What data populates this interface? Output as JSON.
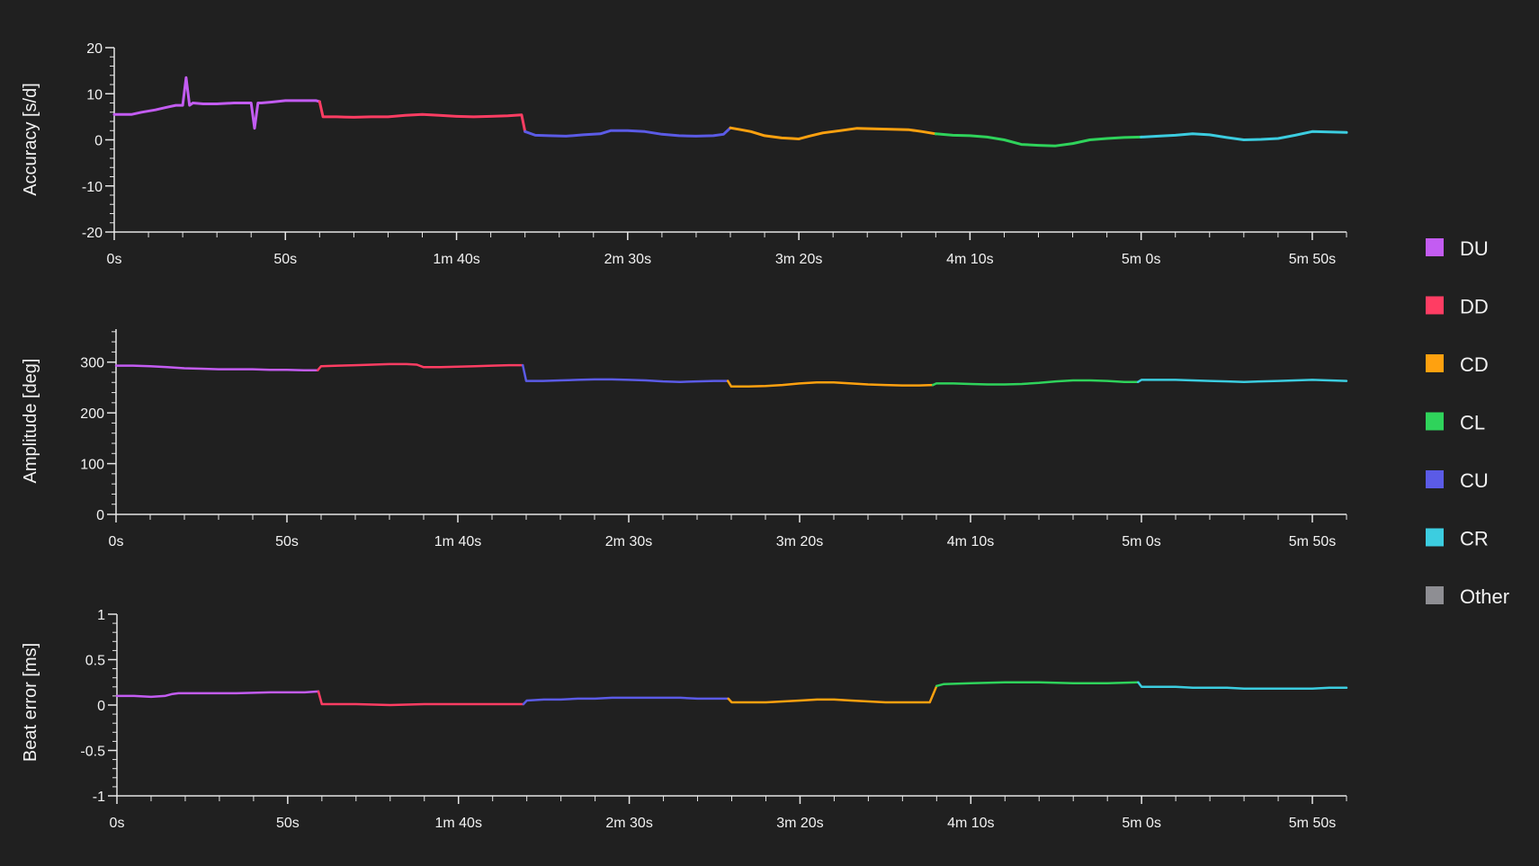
{
  "legend": {
    "placement": "right",
    "items": [
      {
        "label": "DU",
        "color": "#c35cf2"
      },
      {
        "label": "DD",
        "color": "#ff3d63"
      },
      {
        "label": "CD",
        "color": "#ffa10f"
      },
      {
        "label": "CL",
        "color": "#2fd35b"
      },
      {
        "label": "CU",
        "color": "#5b5be6"
      },
      {
        "label": "CR",
        "color": "#3ccde0"
      },
      {
        "label": "Other",
        "color": "#8e8e93"
      }
    ]
  },
  "chart_data": [
    {
      "type": "line",
      "ylabel": "Accuracy [s/d]",
      "ylim": [
        -20,
        20
      ],
      "yticks": [
        20,
        10,
        0,
        -10,
        -20
      ],
      "ytick_labels": [
        "20",
        "10",
        "0",
        "-10",
        "-20"
      ],
      "xlim": [
        0,
        360
      ],
      "xticks": [
        0,
        50,
        100,
        150,
        200,
        250,
        300,
        350
      ],
      "xtick_labels": [
        "0s",
        "50s",
        "1m 40s",
        "2m 30s",
        "3m 20s",
        "4m 10s",
        "5m 0s",
        "5m 50s"
      ],
      "grid": false,
      "series": [
        {
          "name": "DU",
          "color": "#c35cf2",
          "x": [
            0,
            5,
            8,
            12,
            15,
            18,
            20,
            21,
            22,
            23,
            26,
            30,
            35,
            40,
            41,
            42,
            43,
            46,
            50,
            53,
            56,
            59,
            60
          ],
          "y": [
            5.5,
            5.5,
            6,
            6.5,
            7,
            7.5,
            7.5,
            13.5,
            7.5,
            8,
            7.8,
            7.8,
            8,
            8,
            2.5,
            8,
            8,
            8.2,
            8.5,
            8.5,
            8.5,
            8.5,
            8.3
          ]
        },
        {
          "name": "DD",
          "color": "#ff3d63",
          "x": [
            60,
            61,
            65,
            70,
            75,
            80,
            85,
            90,
            95,
            100,
            105,
            110,
            115,
            119,
            120
          ],
          "y": [
            8.3,
            5,
            5,
            4.9,
            5,
            5,
            5.3,
            5.5,
            5.3,
            5.1,
            5,
            5.1,
            5.2,
            5.4,
            1.8
          ]
        },
        {
          "name": "CU",
          "color": "#5b5be6",
          "x": [
            120,
            123,
            127,
            132,
            137,
            142,
            145,
            150,
            155,
            160,
            165,
            170,
            175,
            178,
            180
          ],
          "y": [
            1.8,
            1,
            0.9,
            0.8,
            1.1,
            1.3,
            2,
            2,
            1.8,
            1.2,
            0.9,
            0.8,
            0.9,
            1.2,
            2.6
          ]
        },
        {
          "name": "CD",
          "color": "#ffa10f",
          "x": [
            180,
            183,
            186,
            190,
            195,
            198,
            200,
            203,
            207,
            212,
            217,
            222,
            227,
            232,
            236,
            240
          ],
          "y": [
            2.6,
            2.2,
            1.8,
            0.9,
            0.4,
            0.3,
            0.2,
            0.8,
            1.5,
            2,
            2.5,
            2.4,
            2.3,
            2.2,
            1.8,
            1.3
          ]
        },
        {
          "name": "CL",
          "color": "#2fd35b",
          "x": [
            240,
            245,
            250,
            255,
            260,
            265,
            270,
            275,
            280,
            285,
            290,
            295,
            300
          ],
          "y": [
            1.3,
            1,
            0.9,
            0.6,
            0,
            -1,
            -1.2,
            -1.3,
            -0.8,
            0,
            0.3,
            0.5,
            0.6
          ]
        },
        {
          "name": "CR",
          "color": "#3ccde0",
          "x": [
            300,
            305,
            310,
            315,
            320,
            325,
            330,
            335,
            340,
            345,
            350,
            355,
            360
          ],
          "y": [
            0.6,
            0.8,
            1,
            1.3,
            1.1,
            0.5,
            0,
            0.1,
            0.3,
            1,
            1.8,
            1.7,
            1.6
          ]
        }
      ]
    },
    {
      "type": "line",
      "ylabel": "Amplitude [deg]",
      "ylim": [
        0,
        365
      ],
      "yticks": [
        300,
        200,
        100,
        0
      ],
      "ytick_labels": [
        "300",
        "200",
        "100",
        "0"
      ],
      "xlim": [
        0,
        360
      ],
      "xticks": [
        0,
        50,
        100,
        150,
        200,
        250,
        300,
        350
      ],
      "xtick_labels": [
        "0s",
        "50s",
        "1m 40s",
        "2m 30s",
        "3m 20s",
        "4m 10s",
        "5m 0s",
        "5m 50s"
      ],
      "grid": false,
      "series": [
        {
          "name": "DU",
          "color": "#c35cf2",
          "x": [
            0,
            5,
            10,
            15,
            20,
            25,
            30,
            35,
            40,
            45,
            50,
            55,
            59
          ],
          "y": [
            293,
            293,
            292,
            290,
            288,
            287,
            286,
            286,
            286,
            285,
            285,
            284,
            284
          ]
        },
        {
          "name": "DD",
          "color": "#ff3d63",
          "x": [
            59,
            60,
            65,
            70,
            75,
            80,
            85,
            88,
            90,
            95,
            100,
            105,
            110,
            115,
            119
          ],
          "y": [
            284,
            292,
            293,
            294,
            295,
            296,
            296,
            295,
            290,
            290,
            291,
            292,
            293,
            294,
            294
          ]
        },
        {
          "name": "CU",
          "color": "#5b5be6",
          "x": [
            119,
            120,
            125,
            130,
            135,
            140,
            145,
            150,
            155,
            160,
            165,
            170,
            175,
            179
          ],
          "y": [
            294,
            263,
            263,
            264,
            265,
            266,
            266,
            265,
            264,
            262,
            261,
            262,
            263,
            263
          ]
        },
        {
          "name": "CD",
          "color": "#ffa10f",
          "x": [
            179,
            180,
            185,
            190,
            195,
            200,
            205,
            210,
            215,
            220,
            225,
            230,
            235,
            239
          ],
          "y": [
            263,
            252,
            252,
            253,
            255,
            258,
            260,
            260,
            258,
            256,
            255,
            254,
            254,
            255
          ]
        },
        {
          "name": "CL",
          "color": "#2fd35b",
          "x": [
            239,
            240,
            245,
            250,
            255,
            260,
            265,
            270,
            275,
            280,
            285,
            290,
            295,
            299
          ],
          "y": [
            255,
            258,
            258,
            257,
            256,
            256,
            257,
            259,
            262,
            264,
            264,
            263,
            261,
            261
          ]
        },
        {
          "name": "CR",
          "color": "#3ccde0",
          "x": [
            299,
            300,
            305,
            310,
            315,
            320,
            325,
            330,
            335,
            340,
            345,
            350,
            355,
            360
          ],
          "y": [
            261,
            265,
            265,
            265,
            264,
            263,
            262,
            261,
            262,
            263,
            264,
            265,
            264,
            263
          ]
        }
      ]
    },
    {
      "type": "line",
      "ylabel": "Beat error [ms]",
      "ylim": [
        -1,
        1
      ],
      "yticks": [
        1,
        0.5,
        0,
        -0.5,
        -1
      ],
      "ytick_labels": [
        "1",
        "0.5",
        "0",
        "-0.5",
        "-1"
      ],
      "xlim": [
        0,
        360
      ],
      "xticks": [
        0,
        50,
        100,
        150,
        200,
        250,
        300,
        350
      ],
      "xtick_labels": [
        "0s",
        "50s",
        "1m 40s",
        "2m 30s",
        "3m 20s",
        "4m 10s",
        "5m 0s",
        "5m 50s"
      ],
      "grid": false,
      "series": [
        {
          "name": "DU",
          "color": "#c35cf2",
          "x": [
            0,
            5,
            10,
            14,
            16,
            18,
            25,
            35,
            45,
            55,
            59
          ],
          "y": [
            0.1,
            0.1,
            0.09,
            0.1,
            0.12,
            0.13,
            0.13,
            0.13,
            0.14,
            0.14,
            0.15
          ]
        },
        {
          "name": "DD",
          "color": "#ff3d63",
          "x": [
            59,
            60,
            70,
            80,
            90,
            100,
            110,
            119
          ],
          "y": [
            0.15,
            0.01,
            0.01,
            0,
            0.01,
            0.01,
            0.01,
            0.01
          ]
        },
        {
          "name": "CU",
          "color": "#5b5be6",
          "x": [
            119,
            120,
            125,
            130,
            135,
            140,
            145,
            150,
            155,
            160,
            165,
            170,
            175,
            179
          ],
          "y": [
            0.01,
            0.05,
            0.06,
            0.06,
            0.07,
            0.07,
            0.08,
            0.08,
            0.08,
            0.08,
            0.08,
            0.07,
            0.07,
            0.07
          ]
        },
        {
          "name": "CD",
          "color": "#ffa10f",
          "x": [
            179,
            180,
            185,
            190,
            195,
            200,
            205,
            210,
            215,
            220,
            225,
            230,
            235,
            238,
            240
          ],
          "y": [
            0.07,
            0.03,
            0.03,
            0.03,
            0.04,
            0.05,
            0.06,
            0.06,
            0.05,
            0.04,
            0.03,
            0.03,
            0.03,
            0.03,
            0.21
          ]
        },
        {
          "name": "CL",
          "color": "#2fd35b",
          "x": [
            240,
            242,
            250,
            260,
            270,
            280,
            290,
            299
          ],
          "y": [
            0.21,
            0.23,
            0.24,
            0.25,
            0.25,
            0.24,
            0.24,
            0.25
          ]
        },
        {
          "name": "CR",
          "color": "#3ccde0",
          "x": [
            299,
            300,
            305,
            310,
            315,
            320,
            325,
            330,
            335,
            340,
            345,
            350,
            355,
            360
          ],
          "y": [
            0.25,
            0.2,
            0.2,
            0.2,
            0.19,
            0.19,
            0.19,
            0.18,
            0.18,
            0.18,
            0.18,
            0.18,
            0.19,
            0.19
          ]
        }
      ]
    }
  ]
}
